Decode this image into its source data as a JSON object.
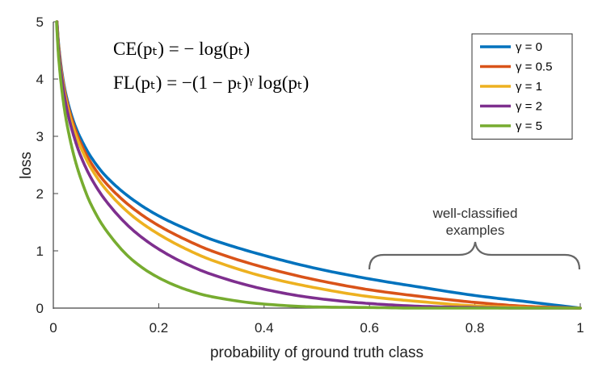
{
  "chart_data": {
    "type": "line",
    "xlabel": "probability of ground truth class",
    "ylabel": "loss",
    "xlim": [
      0,
      1
    ],
    "ylim": [
      0,
      5
    ],
    "x_ticks": [
      "0",
      "0.2",
      "0.4",
      "0.6",
      "0.8",
      "1"
    ],
    "y_ticks": [
      "0",
      "1",
      "2",
      "3",
      "4",
      "5"
    ],
    "formula_ce": "CE(pₜ) = − log(pₜ)",
    "formula_fl": "FL(pₜ) = −(1 − pₜ)ᵞ log(pₜ)",
    "legend_position": "top-right",
    "annotation": [
      "well-classified",
      "examples"
    ],
    "x": [
      0.005,
      0.01,
      0.02,
      0.03,
      0.04,
      0.05,
      0.07,
      0.1,
      0.15,
      0.2,
      0.25,
      0.3,
      0.4,
      0.5,
      0.6,
      0.7,
      0.8,
      0.9,
      1.0
    ],
    "series": [
      {
        "name": "γ = 0",
        "color": "#0072BD",
        "values": [
          5.3,
          4.61,
          3.91,
          3.51,
          3.22,
          3.0,
          2.66,
          2.3,
          1.9,
          1.61,
          1.39,
          1.2,
          0.92,
          0.69,
          0.51,
          0.36,
          0.22,
          0.11,
          0.0
        ]
      },
      {
        "name": "γ = 0.5",
        "color": "#D95319",
        "values": [
          5.28,
          4.58,
          3.87,
          3.46,
          3.16,
          2.92,
          2.56,
          2.18,
          1.75,
          1.44,
          1.2,
          1.0,
          0.71,
          0.49,
          0.32,
          0.2,
          0.1,
          0.03,
          0.0
        ]
      },
      {
        "name": "γ = 1",
        "color": "#EDB120",
        "values": [
          5.27,
          4.56,
          3.83,
          3.4,
          3.09,
          2.85,
          2.47,
          2.07,
          1.61,
          1.29,
          1.04,
          0.84,
          0.55,
          0.35,
          0.2,
          0.11,
          0.04,
          0.01,
          0.0
        ]
      },
      {
        "name": "γ = 2",
        "color": "#7E2F8E",
        "values": [
          5.25,
          4.51,
          3.76,
          3.3,
          2.97,
          2.7,
          2.3,
          1.87,
          1.37,
          1.03,
          0.78,
          0.59,
          0.33,
          0.17,
          0.08,
          0.03,
          0.01,
          0.0,
          0.0
        ]
      },
      {
        "name": "γ = 5",
        "color": "#77AC30",
        "values": [
          5.17,
          4.38,
          3.54,
          3.02,
          2.63,
          2.32,
          1.84,
          1.36,
          0.84,
          0.53,
          0.33,
          0.2,
          0.07,
          0.02,
          0.01,
          0.0,
          0.0,
          0.0,
          0.0
        ]
      }
    ]
  }
}
